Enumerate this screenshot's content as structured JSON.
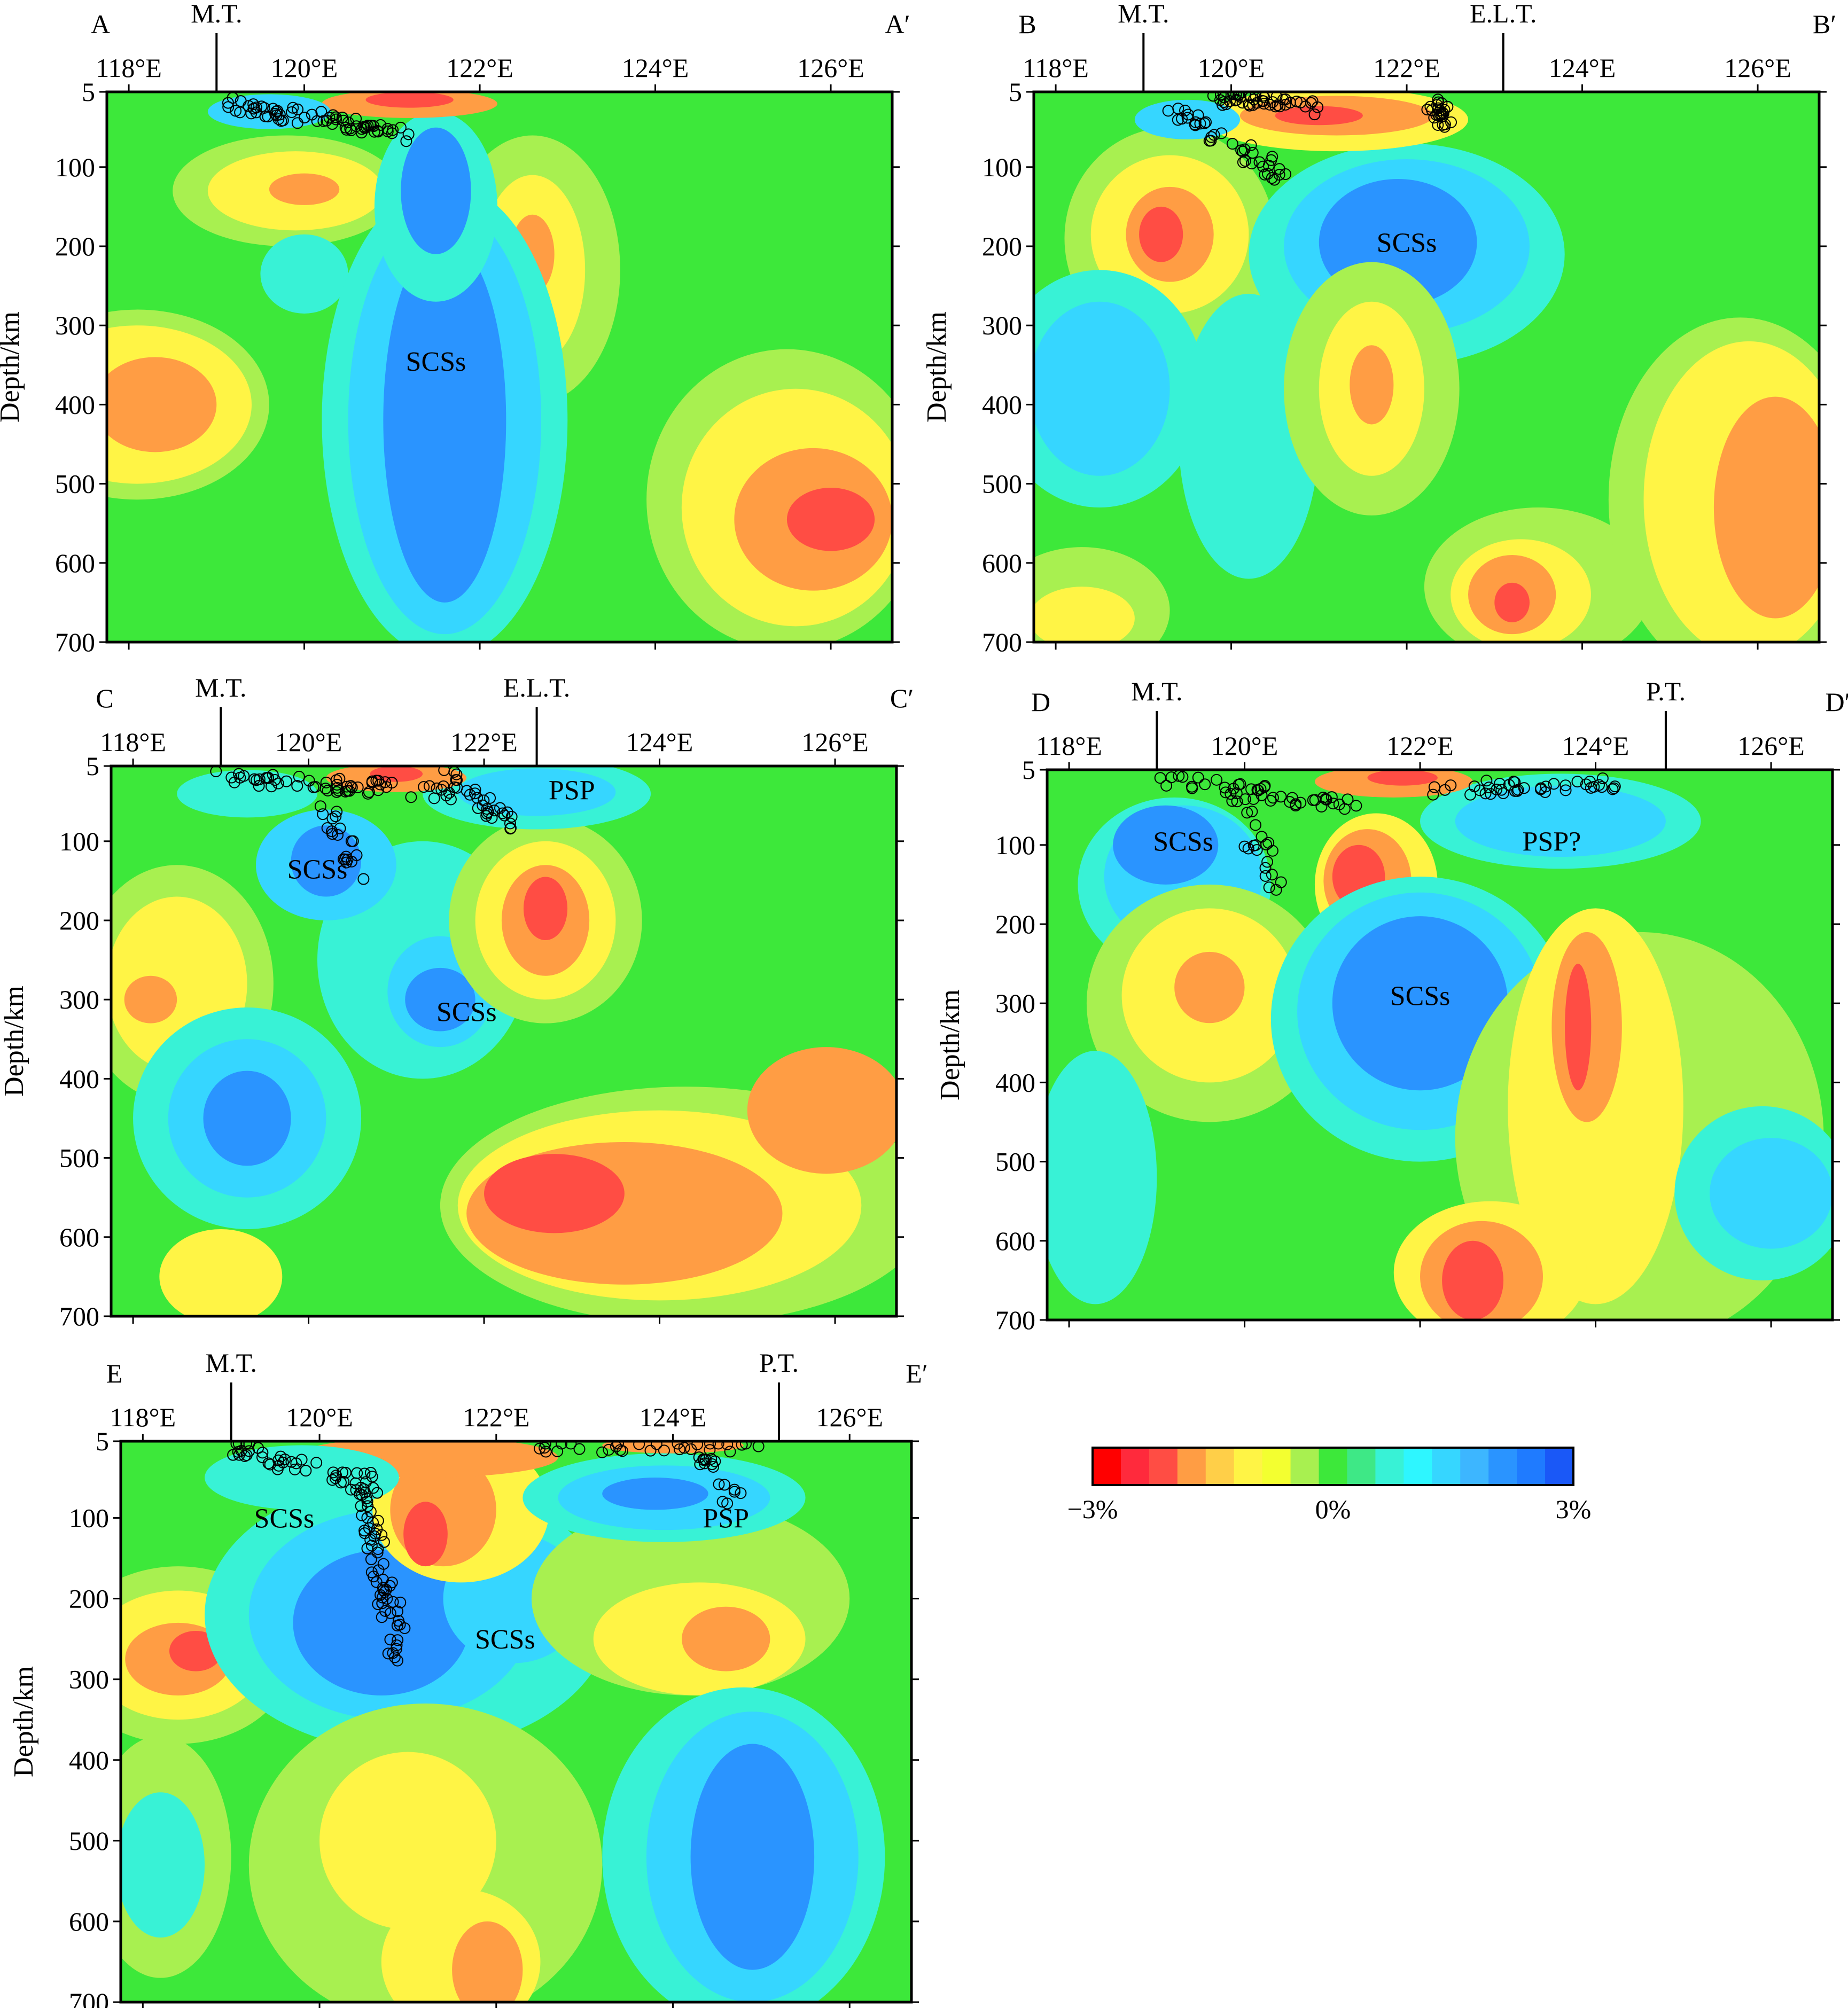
{
  "panels": [
    {
      "id": "A",
      "left_label": "A",
      "right_label": "A′",
      "xticks": [
        "118°E",
        "120°E",
        "122°E",
        "124°E",
        "126°E"
      ],
      "yticks": [
        "5",
        "100",
        "200",
        "300",
        "400",
        "500",
        "600",
        "700"
      ],
      "ylabel": "Depth/km",
      "markers": [
        {
          "label": "M.T.",
          "lon": 119.0
        }
      ],
      "annotations": [
        {
          "text": "SCSs",
          "lon": 121.5,
          "depth": 345
        }
      ]
    },
    {
      "id": "B",
      "left_label": "B",
      "right_label": "B′",
      "xticks": [
        "118°E",
        "120°E",
        "122°E",
        "124°E",
        "126°E"
      ],
      "yticks": [
        "5",
        "100",
        "200",
        "300",
        "400",
        "500",
        "600",
        "700"
      ],
      "ylabel": "Depth/km",
      "markers": [
        {
          "label": "M.T.",
          "lon": 119.0
        },
        {
          "label": "E.L.T.",
          "lon": 123.1
        }
      ],
      "annotations": [
        {
          "text": "SCSs",
          "lon": 122.0,
          "depth": 195
        }
      ]
    },
    {
      "id": "C",
      "left_label": "C",
      "right_label": "C′",
      "xticks": [
        "118°E",
        "120°E",
        "122°E",
        "124°E",
        "126°E"
      ],
      "yticks": [
        "5",
        "100",
        "200",
        "300",
        "400",
        "500",
        "600",
        "700"
      ],
      "ylabel": "Depth/km",
      "markers": [
        {
          "label": "M.T.",
          "lon": 119.0
        },
        {
          "label": "E.L.T.",
          "lon": 122.6
        }
      ],
      "annotations": [
        {
          "text": "PSP",
          "lon": 123.0,
          "depth": 35
        },
        {
          "text": "SCSs",
          "lon": 120.1,
          "depth": 135
        },
        {
          "text": "SCSs",
          "lon": 121.8,
          "depth": 315
        }
      ]
    },
    {
      "id": "D",
      "left_label": "D",
      "right_label": "D′",
      "xticks": [
        "118°E",
        "120°E",
        "122°E",
        "124°E",
        "126°E"
      ],
      "yticks": [
        "5",
        "100",
        "200",
        "300",
        "400",
        "500",
        "600",
        "700"
      ],
      "ylabel": "Depth/km",
      "markers": [
        {
          "label": "M.T.",
          "lon": 119.0
        },
        {
          "label": "P.T.",
          "lon": 124.8
        }
      ],
      "annotations": [
        {
          "text": "SCSs",
          "lon": 119.3,
          "depth": 95
        },
        {
          "text": "PSP?",
          "lon": 123.5,
          "depth": 95
        },
        {
          "text": "SCSs",
          "lon": 122.0,
          "depth": 290
        }
      ]
    },
    {
      "id": "E",
      "left_label": "E",
      "right_label": "E′",
      "xticks": [
        "118°E",
        "120°E",
        "122°E",
        "124°E",
        "126°E"
      ],
      "yticks": [
        "5",
        "100",
        "200",
        "300",
        "400",
        "500",
        "600",
        "700"
      ],
      "ylabel": "Depth/km",
      "markers": [
        {
          "label": "M.T.",
          "lon": 119.0
        },
        {
          "label": "P.T.",
          "lon": 125.2
        }
      ],
      "annotations": [
        {
          "text": "SCSs",
          "lon": 119.6,
          "depth": 100
        },
        {
          "text": "PSP",
          "lon": 124.6,
          "depth": 100
        },
        {
          "text": "SCSs",
          "lon": 122.1,
          "depth": 250
        }
      ]
    }
  ],
  "colorbar": {
    "colors": [
      "#ff0000",
      "#ff2a3c",
      "#ff4d44",
      "#ff9d44",
      "#ffcf48",
      "#fff445",
      "#f3ff30",
      "#a8f050",
      "#3de83a",
      "#3ee886",
      "#38f2d6",
      "#2ef6ff",
      "#36d6ff",
      "#3db6ff",
      "#2a94ff",
      "#1f7bff",
      "#1a58f7"
    ],
    "labels": [
      "−3%",
      "0%",
      "3%"
    ]
  },
  "colors": {
    "background": "#3de83a",
    "red": "#ff4d44",
    "orange": "#ff9d44",
    "yellow": "#fff445",
    "lightgreen": "#a8f050",
    "cyan": "#38f2d6",
    "lightblue": "#36d6ff",
    "blue": "#2a94ff"
  }
}
